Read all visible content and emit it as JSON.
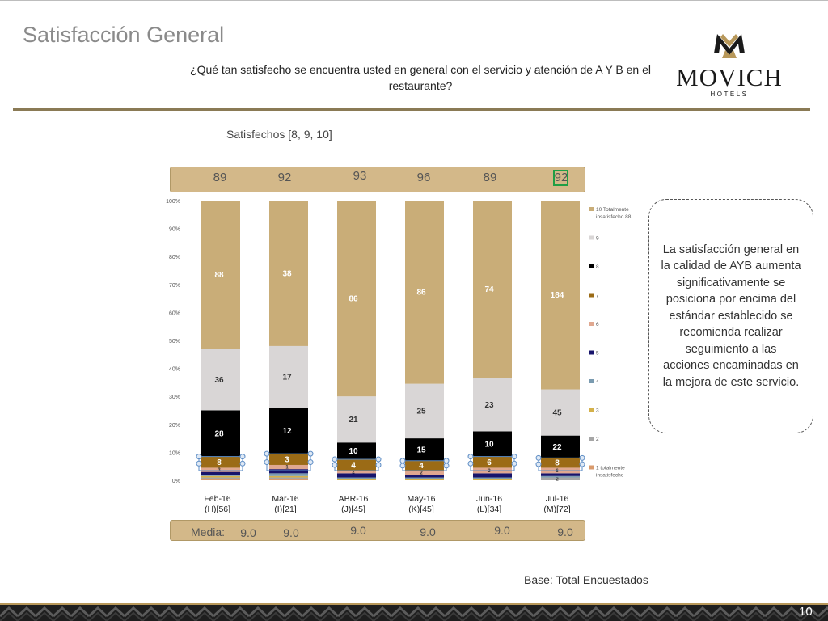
{
  "title": "Satisfacción General",
  "question": "¿Qué tan satisfecho se encuentra usted en general con el servicio y atención de A Y B en el restaurante?",
  "logo": {
    "brand": "MOVICH",
    "sub": "HOTELS"
  },
  "satisfied_label": "Satisfechos [8, 9, 10]",
  "top_values": [
    "89",
    "92",
    "93",
    "96",
    "89",
    "92"
  ],
  "media_label": "Media:",
  "media_values": [
    "9.0",
    "9.0",
    "9.0",
    "9.0",
    "9.0",
    "9.0"
  ],
  "note": "La satisfacción general en la calidad de AYB aumenta significativamente se posiciona por encima del estándar establecido se recomienda realizar seguimiento a las acciones encaminadas en la mejora de este servicio.",
  "base_label": "Base: Total Encuestados",
  "page_number": "10",
  "chart_data": {
    "type": "bar",
    "stacked": true,
    "ylim": [
      0,
      100
    ],
    "yticks": [
      "0%",
      "10%",
      "20%",
      "30%",
      "40%",
      "50%",
      "60%",
      "70%",
      "80%",
      "90%",
      "100%"
    ],
    "categories": [
      [
        "Feb-16",
        "(H)[56]"
      ],
      [
        "Mar-16",
        "(I)[21]"
      ],
      [
        "ABR-16",
        "(J)[45]"
      ],
      [
        "May-16",
        "(K)[45]"
      ],
      [
        "Jun-16",
        "(L)[34]"
      ],
      [
        "Jul-16",
        "(M)[72]"
      ]
    ],
    "series": [
      {
        "name": "1 totalmente insatisfecho",
        "color": "#d99a6c",
        "values": [
          0.5,
          0.5,
          0,
          0,
          0,
          0
        ],
        "labels": [
          "",
          "",
          "",
          "",
          "",
          ""
        ]
      },
      {
        "name": "2",
        "color": "#a6a6a6",
        "values": [
          0.5,
          0.5,
          0,
          0,
          0,
          1
        ],
        "labels": [
          "",
          "",
          "",
          "",
          "",
          "2"
        ]
      },
      {
        "name": "3",
        "color": "#d4b14a",
        "values": [
          0.5,
          0.5,
          0.5,
          0.5,
          0.5,
          0
        ],
        "labels": [
          "",
          "",
          "",
          "",
          "",
          ""
        ]
      },
      {
        "name": "4",
        "color": "#7a9bb0",
        "values": [
          0.5,
          1,
          0.5,
          0.5,
          0.5,
          0.5
        ],
        "labels": [
          "",
          "",
          "",
          "",
          "",
          ""
        ]
      },
      {
        "name": "5",
        "color": "#17146b",
        "values": [
          1,
          1.5,
          1.5,
          1,
          1.5,
          1
        ],
        "labels": [
          "",
          "",
          "",
          "",
          "",
          ""
        ]
      },
      {
        "name": "6",
        "color": "#e0a890",
        "values": [
          1.5,
          1.5,
          1,
          1.5,
          2,
          2
        ],
        "labels": [
          "3",
          "1",
          "2",
          "2",
          "3",
          "6"
        ]
      },
      {
        "name": "7",
        "color": "#9b6b16",
        "values": [
          4,
          4,
          4,
          3.5,
          4,
          3.5
        ],
        "labels": [
          "8",
          "3",
          "4",
          "4",
          "6",
          "8"
        ]
      },
      {
        "name": "8",
        "color": "#000000",
        "values": [
          16.5,
          16.5,
          6,
          8,
          9,
          8
        ],
        "labels": [
          "28",
          "12",
          "10",
          "15",
          "10",
          "22"
        ]
      },
      {
        "name": "9",
        "color": "#d9d6d6",
        "values": [
          22,
          22,
          16.5,
          19.5,
          19,
          16.5
        ],
        "labels": [
          "36",
          "17",
          "21",
          "25",
          "23",
          "45"
        ]
      },
      {
        "name": "10 Totalmente insatisfecho 88",
        "color": "#c9ad78",
        "values": [
          53,
          52,
          70,
          65.5,
          63.5,
          67.5
        ],
        "labels": [
          "88",
          "38",
          "86",
          "86",
          "74",
          "184"
        ]
      }
    ],
    "legend_position": "right",
    "grid": false
  }
}
